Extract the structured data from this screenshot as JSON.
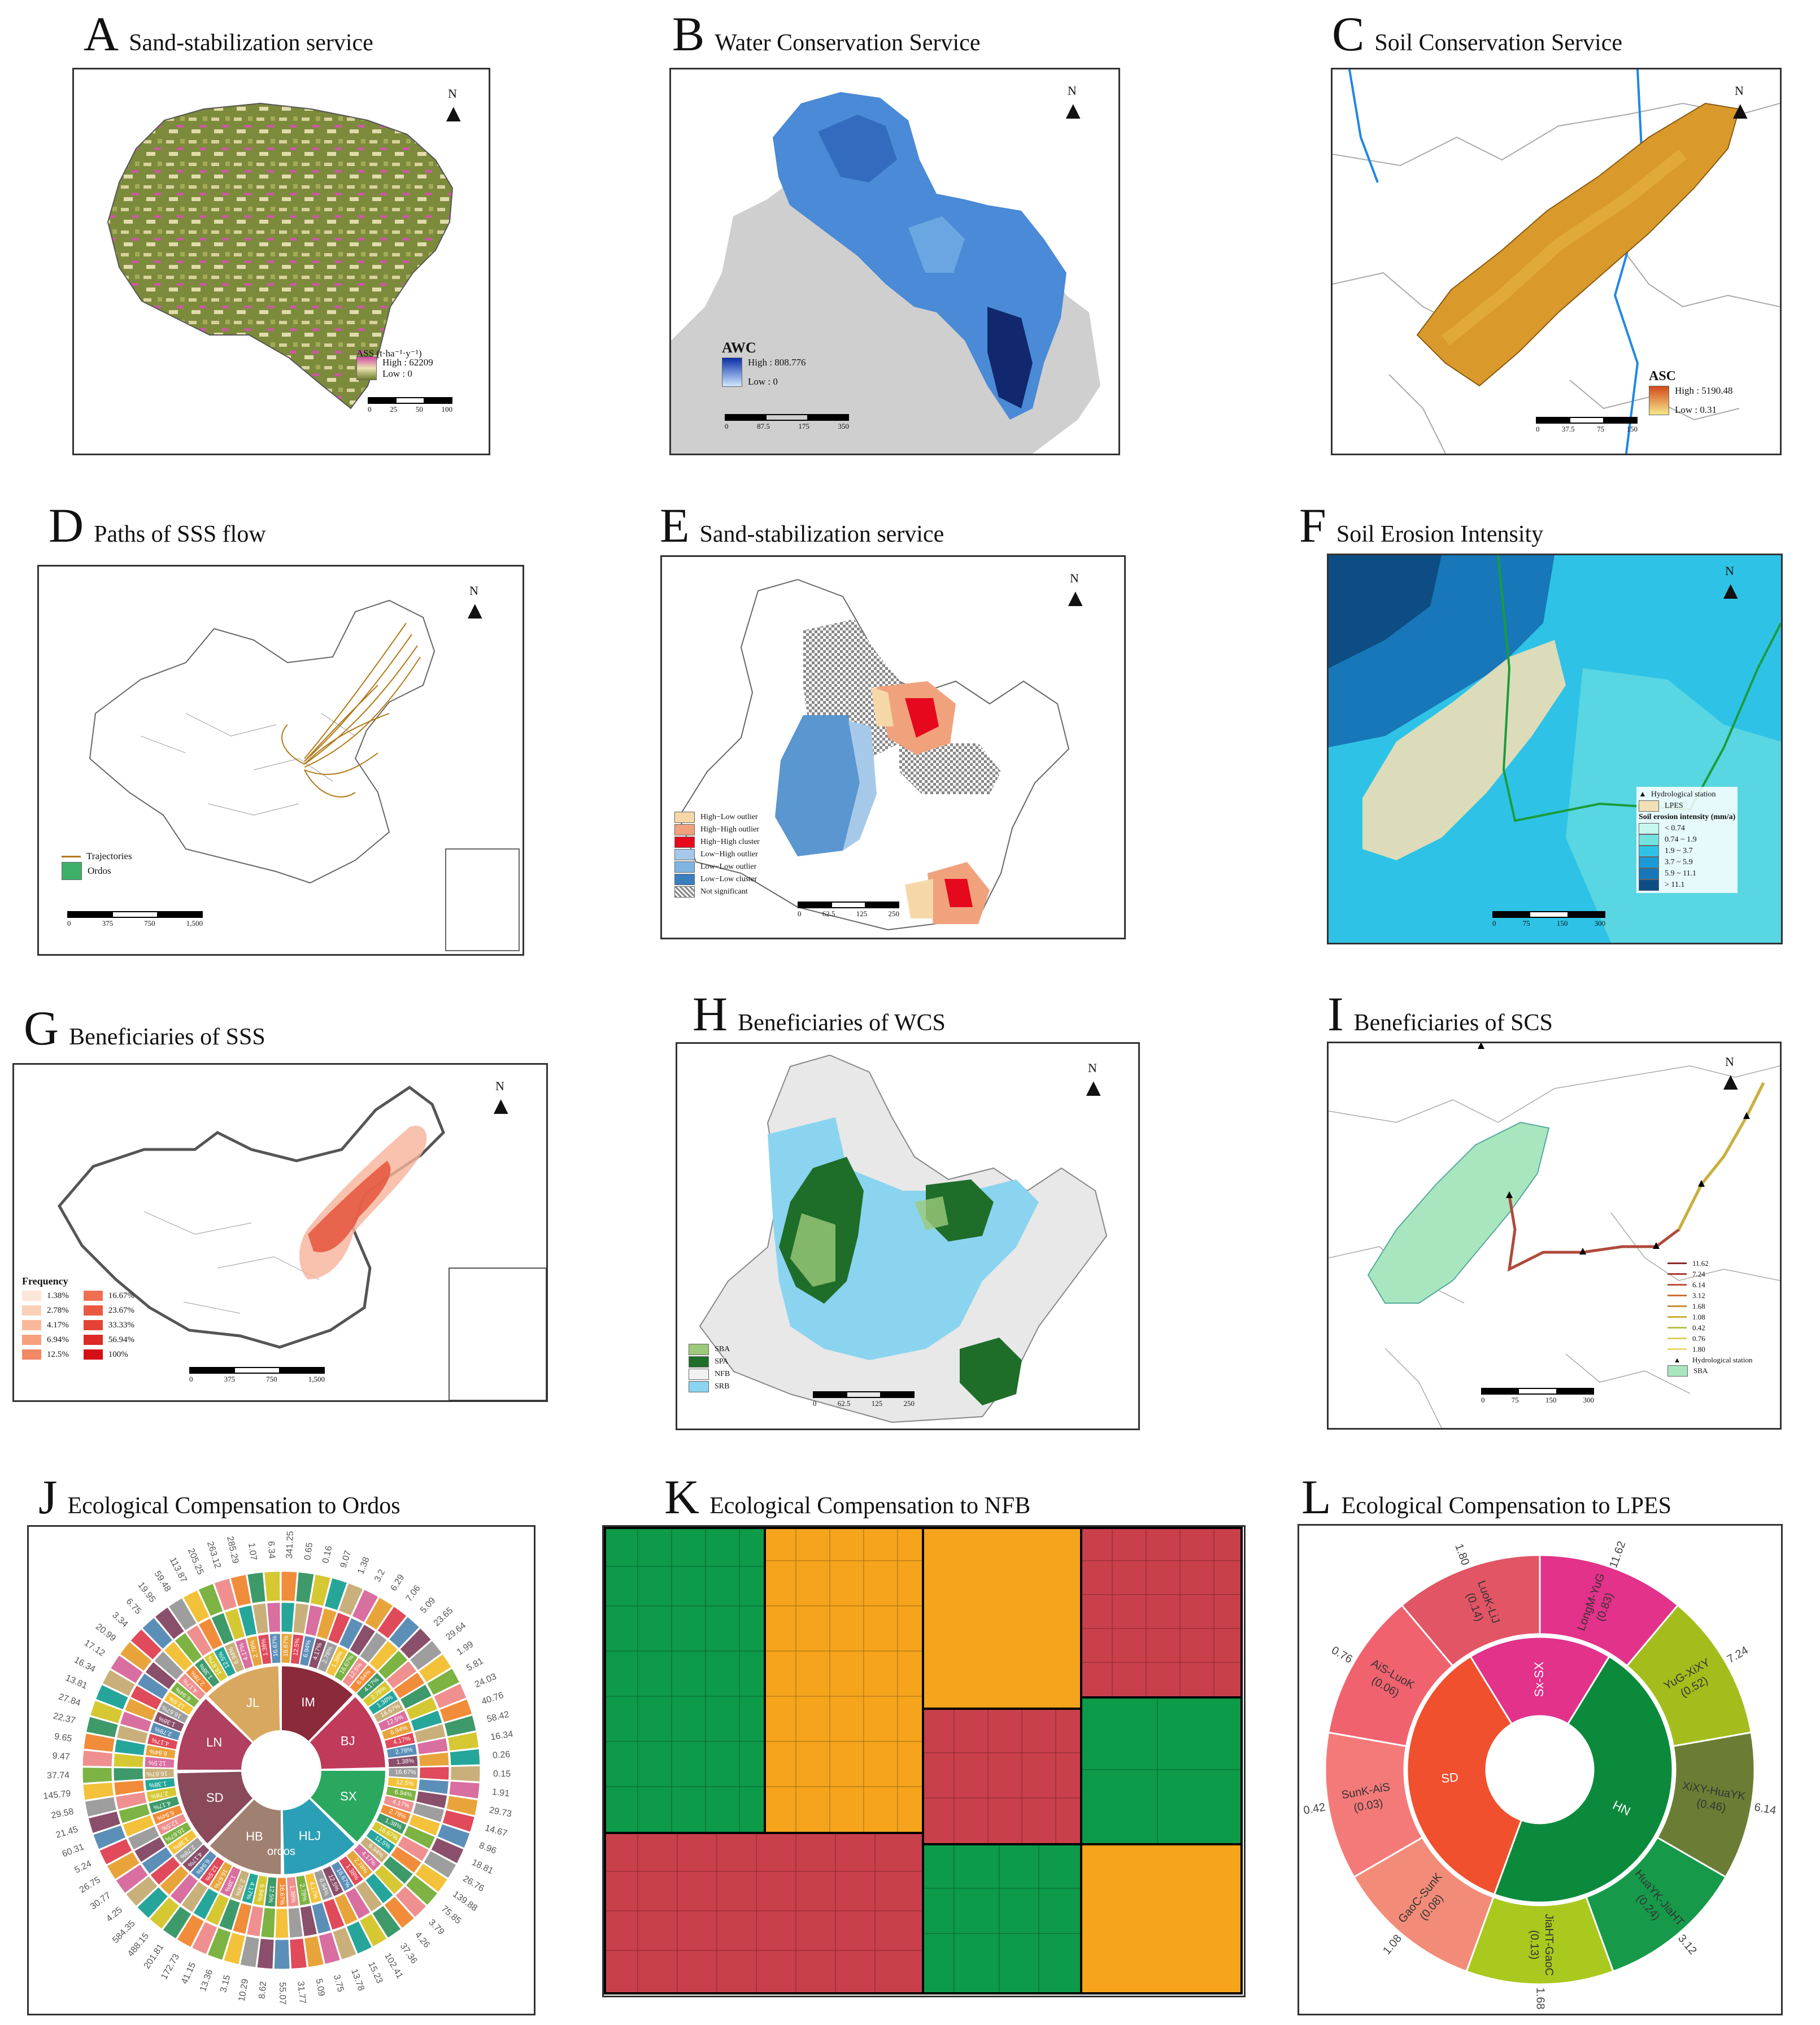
{
  "panels": {
    "A": {
      "letter": "A",
      "title": "Sand-stabilization service",
      "legend_title": "ASS (t·ha⁻¹·y⁻¹)",
      "high": "High : 62209",
      "low": "Low : 0",
      "scale": [
        "0",
        "25",
        "50",
        "100"
      ],
      "scale_unit": "Km",
      "north": "N"
    },
    "B": {
      "letter": "B",
      "title": "Water Conservation Service",
      "legend_title": "AWC",
      "high": "High : 808.776",
      "low": "Low : 0",
      "scale": [
        "0",
        "87.5",
        "175",
        "350"
      ],
      "scale_unit": "Km",
      "north": "N"
    },
    "C": {
      "letter": "C",
      "title": "Soil Conservation Service",
      "legend_title": "ASC",
      "high": "High : 5190.48",
      "low": "Low : 0.31",
      "scale": [
        "0",
        "37.5",
        "75",
        "150"
      ],
      "scale_unit": "Km",
      "north": "N"
    },
    "D": {
      "letter": "D",
      "title": "Paths of SSS flow",
      "legend": [
        "Trajectories",
        "Ordos"
      ],
      "scale": [
        "0",
        "375",
        "750",
        "1,500"
      ],
      "scale_unit": "Km",
      "north": "N"
    },
    "E": {
      "letter": "E",
      "title": "Sand-stabilization service",
      "legend": [
        "High−Low outlier",
        "High−High outlier",
        "High−High cluster",
        "Low−High outlier",
        "Low−Low outlier",
        "Low−Low cluster",
        "Not significant"
      ],
      "scale": [
        "0",
        "62.5",
        "125",
        "250"
      ],
      "scale_unit": "Km",
      "north": "N"
    },
    "F": {
      "letter": "F",
      "title": "Soil Erosion Intensity",
      "legend_title": "Soil erosion intensity (mm/a)",
      "legend_top": [
        "Hydrological station",
        "LPES"
      ],
      "legend": [
        "< 0.74",
        "0.74 ~ 1.9",
        "1.9 ~ 3.7",
        "3.7 ~ 5.9",
        "5.9 ~ 11.1",
        "> 11.1"
      ],
      "scale": [
        "0",
        "75",
        "150",
        "300"
      ],
      "scale_unit": "Km",
      "north": "N"
    },
    "G": {
      "letter": "G",
      "title": "Beneficiaries of SSS",
      "legend_title": "Frequency",
      "legend_left": [
        "1.38%",
        "2.78%",
        "4.17%",
        "6.94%",
        "12.5%"
      ],
      "legend_right": [
        "16.67%",
        "23.67%",
        "33.33%",
        "56.94%",
        "100%"
      ],
      "scale": [
        "0",
        "375",
        "750",
        "1,500"
      ],
      "scale_unit": "Km",
      "north": "N"
    },
    "H": {
      "letter": "H",
      "title": "Beneficiaries of WCS",
      "legend": [
        "SBA",
        "SPA",
        "NFB",
        "SRB"
      ],
      "scale": [
        "0",
        "62.5",
        "125",
        "250"
      ],
      "scale_unit": "Km",
      "north": "N"
    },
    "I": {
      "letter": "I",
      "title": "Beneficiaries of SCS",
      "legend": [
        "11.62",
        "7.24",
        "6.14",
        "3.12",
        "1.68",
        "1.08",
        "0.42",
        "0.76",
        "1.80"
      ],
      "legend_bottom": [
        "Hydrological station",
        "SBA"
      ],
      "scale": [
        "0",
        "75",
        "150",
        "300"
      ],
      "scale_unit": "Km",
      "north": "N"
    },
    "J": {
      "letter": "J",
      "title": "Ecological Compensation to Ordos",
      "center_label": "ordos",
      "inner": [
        "IM",
        "BJ",
        "SX",
        "HLJ",
        "HB",
        "SD",
        "LN",
        "JL"
      ],
      "outer_values": [
        "341.25",
        "0.65",
        "0.16",
        "9.07",
        "1.38",
        "3.2",
        "6.29",
        "7.06",
        "5.09",
        "23.65",
        "29.64",
        "1.99",
        "5.81",
        "24.03",
        "40.76",
        "58.42",
        "16.34",
        "0.26",
        "0.15",
        "1.91",
        "29.73",
        "14.67",
        "8.96",
        "18.81",
        "26.76",
        "139.88",
        "75.85",
        "3.79",
        "4.26",
        "37.36",
        "102.41",
        "15.23",
        "13.78",
        "3.75",
        "5.09",
        "31.77",
        "55.07",
        "8.62",
        "10.29",
        "3.15",
        "13.36",
        "41.15",
        "172.73",
        "201.81",
        "488.15",
        "584.35",
        "4.25",
        "30.77",
        "26.75",
        "5.24",
        "60.31",
        "21.45",
        "29.58",
        "145.79",
        "37.74",
        "9.47",
        "9.65",
        "22.37",
        "27.84",
        "13.81",
        "16.34",
        "17.12",
        "20.99",
        "3.34",
        "6.75",
        "19.95",
        "59.48",
        "113.87",
        "205.25",
        "263.12",
        "285.29",
        "1.07",
        "6.34"
      ],
      "pct_labels": [
        "16.67%",
        "12.5%",
        "6.94%",
        "4.17%",
        "2.78%",
        "1.38%"
      ]
    },
    "K": {
      "letter": "K",
      "title": "Ecological Compensation to NFB"
    },
    "L": {
      "letter": "L",
      "title": "Ecological Compensation to LPES",
      "center": [
        "SD",
        "Sx-SX",
        "HN"
      ],
      "outer": [
        {
          "label": "LongM-YuG",
          "value": "(0.83)",
          "num": "11.62"
        },
        {
          "label": "YuG-XiXY",
          "value": "(0.52)",
          "num": "7.24"
        },
        {
          "label": "XiXY-HuaYK",
          "value": "(0.46)",
          "num": "6.14"
        },
        {
          "label": "HuaYK-JiaHT",
          "value": "(0.24)",
          "num": "3.12"
        },
        {
          "label": "JiaHT-GaoC",
          "value": "(0.13)",
          "num": "1.68"
        },
        {
          "label": "GaoC-SunK",
          "value": "(0.08)",
          "num": "1.08"
        },
        {
          "label": "SunK-AiS",
          "value": "(0.03)",
          "num": "0.42"
        },
        {
          "label": "AiS-LuoK",
          "value": "(0.06)",
          "num": "0.76"
        },
        {
          "label": "LuoK-LiJ",
          "value": "(0.14)",
          "num": "1.80"
        }
      ]
    }
  },
  "colors": {
    "orange": "#f5a41c",
    "green": "#0d9a49",
    "red": "#c9404a",
    "sky": "#8fd3ee",
    "olive": "#6b7d34",
    "pink": "#d9609b"
  }
}
